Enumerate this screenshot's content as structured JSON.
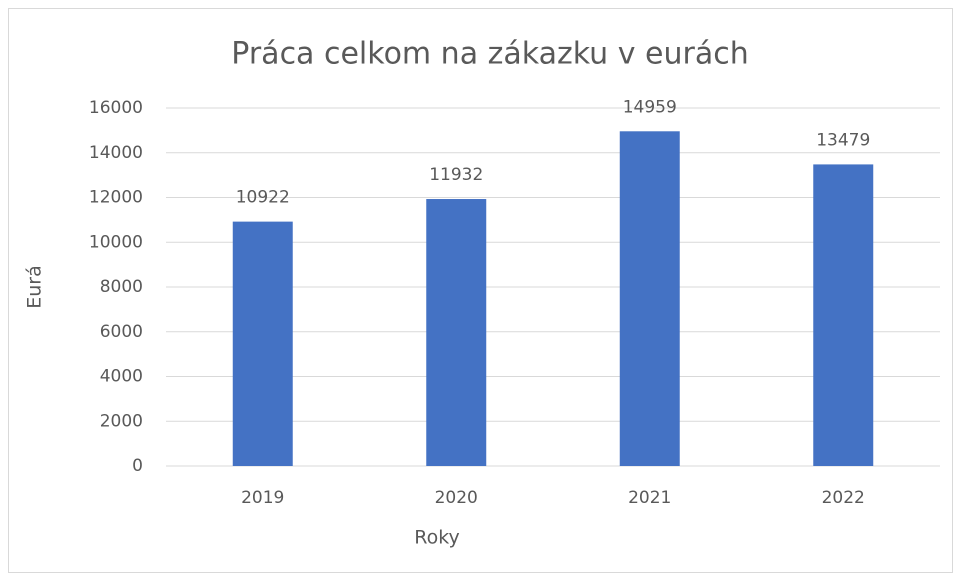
{
  "chart_data": {
    "type": "bar",
    "title": "Práca celkom na zákazku v eurách",
    "x_label": "Roky",
    "y_label": "Eurá",
    "categories": [
      "2019",
      "2020",
      "2021",
      "2022"
    ],
    "values": [
      10922,
      11932,
      14959,
      13479
    ],
    "color": "#4472c4",
    "ylim": [
      0,
      16000
    ],
    "yticks": [
      0,
      2000,
      4000,
      6000,
      8000,
      10000,
      12000,
      14000,
      16000
    ],
    "grid": true
  }
}
